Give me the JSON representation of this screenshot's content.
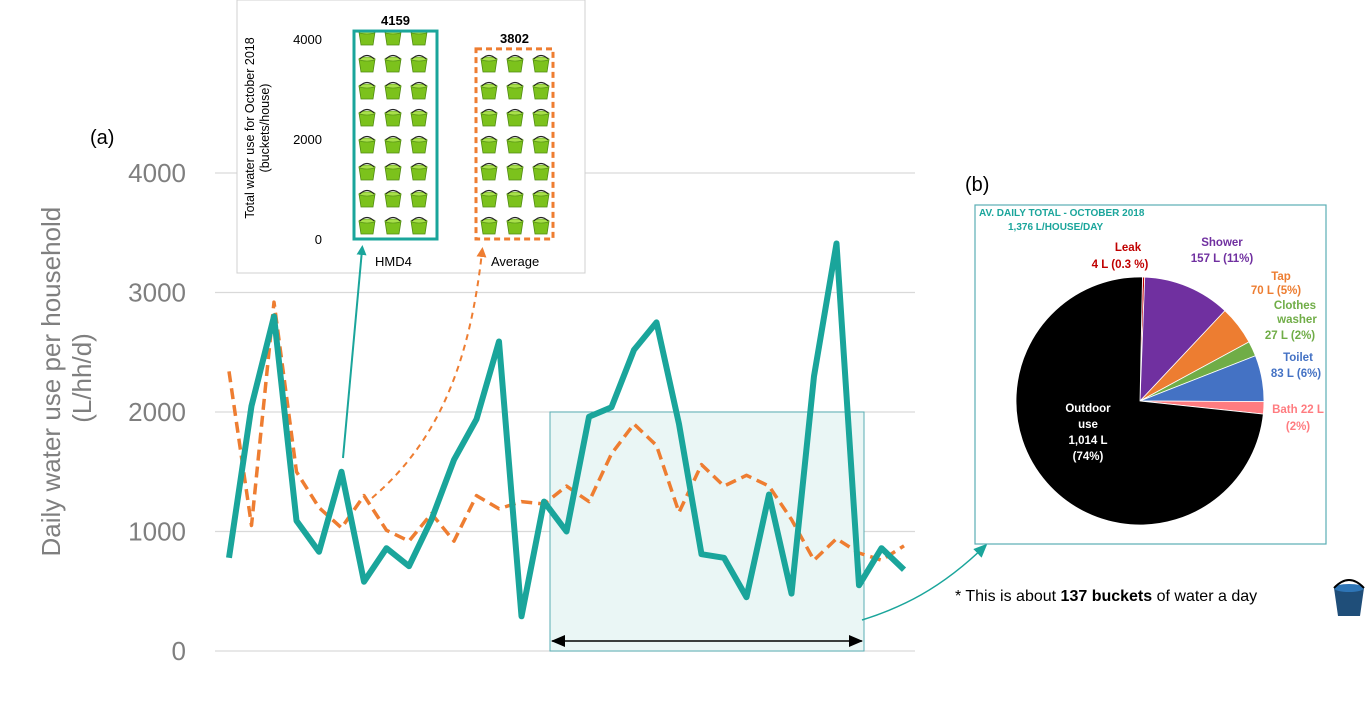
{
  "colors": {
    "teal": "#1aa59b",
    "orange": "#ee7d31",
    "grid": "#d9d9d9",
    "axis_text": "#7f7f7f",
    "highlight_fill": "#eaf6f5",
    "highlight_stroke": "#5aaeb4"
  },
  "panel_a": {
    "label": "(a)",
    "ylabel_line1": "Daily water use per household",
    "ylabel_line2": "(L/hh/d)"
  },
  "panel_b": {
    "label": "(b)",
    "title_line1": "AV. DAILY TOTAL - OCTOBER 2018",
    "title_line2": "1,376 L/HOUSE/DAY"
  },
  "footnote": {
    "prefix": "* This is about",
    "bold": "137 buckets",
    "suffix": "of water a day",
    "icon": "bucket-icon"
  },
  "chart_data": [
    {
      "type": "line",
      "ylim": [
        0,
        4000
      ],
      "yticks": [
        0,
        1000,
        2000,
        3000,
        4000
      ],
      "grid": true,
      "x": [
        1,
        2,
        3,
        4,
        5,
        6,
        7,
        8,
        9,
        10,
        11,
        12,
        13,
        14,
        15,
        16,
        17,
        18,
        19,
        20,
        21,
        22,
        23,
        24,
        25,
        26,
        27,
        28,
        29,
        30,
        31
      ],
      "series": [
        {
          "name": "HMD4",
          "color": "#1aa59b",
          "style": "solid",
          "values": [
            780,
            2050,
            2800,
            1090,
            830,
            1500,
            580,
            860,
            710,
            1100,
            1600,
            1940,
            2590,
            290,
            1250,
            1000,
            1960,
            2040,
            2520,
            2750,
            1900,
            810,
            780,
            450,
            1310,
            480,
            2300,
            3410,
            550,
            860,
            680
          ]
        },
        {
          "name": "Average",
          "color": "#ee7d31",
          "style": "dashed",
          "values": [
            2340,
            1050,
            2920,
            1500,
            1200,
            1030,
            1300,
            1010,
            920,
            1150,
            920,
            1300,
            1190,
            1250,
            1230,
            1380,
            1250,
            1650,
            1900,
            1720,
            1160,
            1560,
            1380,
            1470,
            1380,
            1100,
            760,
            940,
            820,
            760,
            880
          ]
        }
      ],
      "highlight": {
        "x_from": 15,
        "x_to": 29,
        "y_to": 2000
      }
    },
    {
      "type": "bar",
      "categories": [
        "HMD4",
        "Average"
      ],
      "values": [
        4159,
        3802
      ],
      "ylabel": "Total water use for October 2018 (buckets/house)",
      "ylim": [
        0,
        4000
      ],
      "yticks": [
        0,
        2000,
        4000
      ],
      "fill_icon": "bucket-icon"
    },
    {
      "type": "pie",
      "slices": [
        {
          "label": "Leak",
          "value_text": "4 L (0.3 %)",
          "value": 4,
          "color": "#c00000"
        },
        {
          "label": "Shower",
          "value_text": "157 L (11%)",
          "value": 157,
          "color": "#7030a0"
        },
        {
          "label": "Tap",
          "value_text": "70 L (5%)",
          "value": 70,
          "color": "#ed7d31"
        },
        {
          "label": "Clothes washer",
          "value_text": "27 L (2%)",
          "value": 27,
          "color": "#70ad47"
        },
        {
          "label": "Toilet",
          "value_text": "83 L (6%)",
          "value": 83,
          "color": "#4472c4"
        },
        {
          "label": "Bath",
          "value_text": "22 L (2%)",
          "value": 22,
          "color": "#ff7c80"
        },
        {
          "label": "Outdoor use",
          "value_text": "1,014 L (74%)",
          "value": 1014,
          "color": "#000000"
        }
      ]
    }
  ]
}
